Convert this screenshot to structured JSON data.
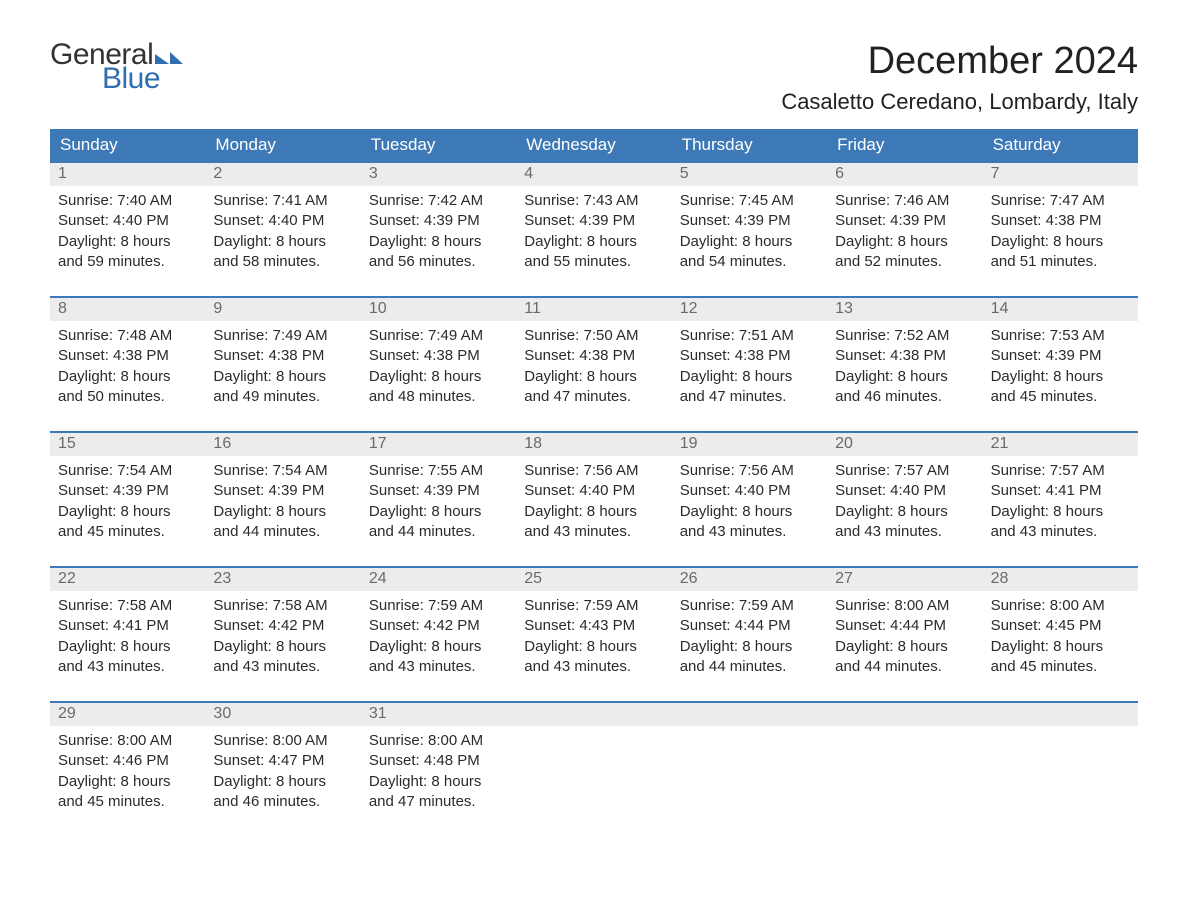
{
  "logo": {
    "word1": "General",
    "word2": "Blue",
    "text_color": "#333333",
    "accent_color": "#2f6fb0"
  },
  "title": "December 2024",
  "location": "Casaletto Ceredano, Lombardy, Italy",
  "colors": {
    "header_bg": "#3d79b6",
    "header_text": "#ffffff",
    "daynum_bg": "#ececec",
    "daynum_text": "#6a6a6a",
    "body_text": "#2b2b2b",
    "week_border": "#3d79b6",
    "page_bg": "#ffffff"
  },
  "typography": {
    "title_fontsize": 38,
    "location_fontsize": 22,
    "weekday_fontsize": 17,
    "daynum_fontsize": 16,
    "cell_fontsize": 15
  },
  "layout": {
    "columns": 7,
    "rows": 5,
    "cell_lines": 4
  },
  "weekdays": [
    "Sunday",
    "Monday",
    "Tuesday",
    "Wednesday",
    "Thursday",
    "Friday",
    "Saturday"
  ],
  "weeks": [
    [
      {
        "day": "1",
        "sunrise": "Sunrise: 7:40 AM",
        "sunset": "Sunset: 4:40 PM",
        "d1": "Daylight: 8 hours",
        "d2": "and 59 minutes."
      },
      {
        "day": "2",
        "sunrise": "Sunrise: 7:41 AM",
        "sunset": "Sunset: 4:40 PM",
        "d1": "Daylight: 8 hours",
        "d2": "and 58 minutes."
      },
      {
        "day": "3",
        "sunrise": "Sunrise: 7:42 AM",
        "sunset": "Sunset: 4:39 PM",
        "d1": "Daylight: 8 hours",
        "d2": "and 56 minutes."
      },
      {
        "day": "4",
        "sunrise": "Sunrise: 7:43 AM",
        "sunset": "Sunset: 4:39 PM",
        "d1": "Daylight: 8 hours",
        "d2": "and 55 minutes."
      },
      {
        "day": "5",
        "sunrise": "Sunrise: 7:45 AM",
        "sunset": "Sunset: 4:39 PM",
        "d1": "Daylight: 8 hours",
        "d2": "and 54 minutes."
      },
      {
        "day": "6",
        "sunrise": "Sunrise: 7:46 AM",
        "sunset": "Sunset: 4:39 PM",
        "d1": "Daylight: 8 hours",
        "d2": "and 52 minutes."
      },
      {
        "day": "7",
        "sunrise": "Sunrise: 7:47 AM",
        "sunset": "Sunset: 4:38 PM",
        "d1": "Daylight: 8 hours",
        "d2": "and 51 minutes."
      }
    ],
    [
      {
        "day": "8",
        "sunrise": "Sunrise: 7:48 AM",
        "sunset": "Sunset: 4:38 PM",
        "d1": "Daylight: 8 hours",
        "d2": "and 50 minutes."
      },
      {
        "day": "9",
        "sunrise": "Sunrise: 7:49 AM",
        "sunset": "Sunset: 4:38 PM",
        "d1": "Daylight: 8 hours",
        "d2": "and 49 minutes."
      },
      {
        "day": "10",
        "sunrise": "Sunrise: 7:49 AM",
        "sunset": "Sunset: 4:38 PM",
        "d1": "Daylight: 8 hours",
        "d2": "and 48 minutes."
      },
      {
        "day": "11",
        "sunrise": "Sunrise: 7:50 AM",
        "sunset": "Sunset: 4:38 PM",
        "d1": "Daylight: 8 hours",
        "d2": "and 47 minutes."
      },
      {
        "day": "12",
        "sunrise": "Sunrise: 7:51 AM",
        "sunset": "Sunset: 4:38 PM",
        "d1": "Daylight: 8 hours",
        "d2": "and 47 minutes."
      },
      {
        "day": "13",
        "sunrise": "Sunrise: 7:52 AM",
        "sunset": "Sunset: 4:38 PM",
        "d1": "Daylight: 8 hours",
        "d2": "and 46 minutes."
      },
      {
        "day": "14",
        "sunrise": "Sunrise: 7:53 AM",
        "sunset": "Sunset: 4:39 PM",
        "d1": "Daylight: 8 hours",
        "d2": "and 45 minutes."
      }
    ],
    [
      {
        "day": "15",
        "sunrise": "Sunrise: 7:54 AM",
        "sunset": "Sunset: 4:39 PM",
        "d1": "Daylight: 8 hours",
        "d2": "and 45 minutes."
      },
      {
        "day": "16",
        "sunrise": "Sunrise: 7:54 AM",
        "sunset": "Sunset: 4:39 PM",
        "d1": "Daylight: 8 hours",
        "d2": "and 44 minutes."
      },
      {
        "day": "17",
        "sunrise": "Sunrise: 7:55 AM",
        "sunset": "Sunset: 4:39 PM",
        "d1": "Daylight: 8 hours",
        "d2": "and 44 minutes."
      },
      {
        "day": "18",
        "sunrise": "Sunrise: 7:56 AM",
        "sunset": "Sunset: 4:40 PM",
        "d1": "Daylight: 8 hours",
        "d2": "and 43 minutes."
      },
      {
        "day": "19",
        "sunrise": "Sunrise: 7:56 AM",
        "sunset": "Sunset: 4:40 PM",
        "d1": "Daylight: 8 hours",
        "d2": "and 43 minutes."
      },
      {
        "day": "20",
        "sunrise": "Sunrise: 7:57 AM",
        "sunset": "Sunset: 4:40 PM",
        "d1": "Daylight: 8 hours",
        "d2": "and 43 minutes."
      },
      {
        "day": "21",
        "sunrise": "Sunrise: 7:57 AM",
        "sunset": "Sunset: 4:41 PM",
        "d1": "Daylight: 8 hours",
        "d2": "and 43 minutes."
      }
    ],
    [
      {
        "day": "22",
        "sunrise": "Sunrise: 7:58 AM",
        "sunset": "Sunset: 4:41 PM",
        "d1": "Daylight: 8 hours",
        "d2": "and 43 minutes."
      },
      {
        "day": "23",
        "sunrise": "Sunrise: 7:58 AM",
        "sunset": "Sunset: 4:42 PM",
        "d1": "Daylight: 8 hours",
        "d2": "and 43 minutes."
      },
      {
        "day": "24",
        "sunrise": "Sunrise: 7:59 AM",
        "sunset": "Sunset: 4:42 PM",
        "d1": "Daylight: 8 hours",
        "d2": "and 43 minutes."
      },
      {
        "day": "25",
        "sunrise": "Sunrise: 7:59 AM",
        "sunset": "Sunset: 4:43 PM",
        "d1": "Daylight: 8 hours",
        "d2": "and 43 minutes."
      },
      {
        "day": "26",
        "sunrise": "Sunrise: 7:59 AM",
        "sunset": "Sunset: 4:44 PM",
        "d1": "Daylight: 8 hours",
        "d2": "and 44 minutes."
      },
      {
        "day": "27",
        "sunrise": "Sunrise: 8:00 AM",
        "sunset": "Sunset: 4:44 PM",
        "d1": "Daylight: 8 hours",
        "d2": "and 44 minutes."
      },
      {
        "day": "28",
        "sunrise": "Sunrise: 8:00 AM",
        "sunset": "Sunset: 4:45 PM",
        "d1": "Daylight: 8 hours",
        "d2": "and 45 minutes."
      }
    ],
    [
      {
        "day": "29",
        "sunrise": "Sunrise: 8:00 AM",
        "sunset": "Sunset: 4:46 PM",
        "d1": "Daylight: 8 hours",
        "d2": "and 45 minutes."
      },
      {
        "day": "30",
        "sunrise": "Sunrise: 8:00 AM",
        "sunset": "Sunset: 4:47 PM",
        "d1": "Daylight: 8 hours",
        "d2": "and 46 minutes."
      },
      {
        "day": "31",
        "sunrise": "Sunrise: 8:00 AM",
        "sunset": "Sunset: 4:48 PM",
        "d1": "Daylight: 8 hours",
        "d2": "and 47 minutes."
      },
      null,
      null,
      null,
      null
    ]
  ]
}
